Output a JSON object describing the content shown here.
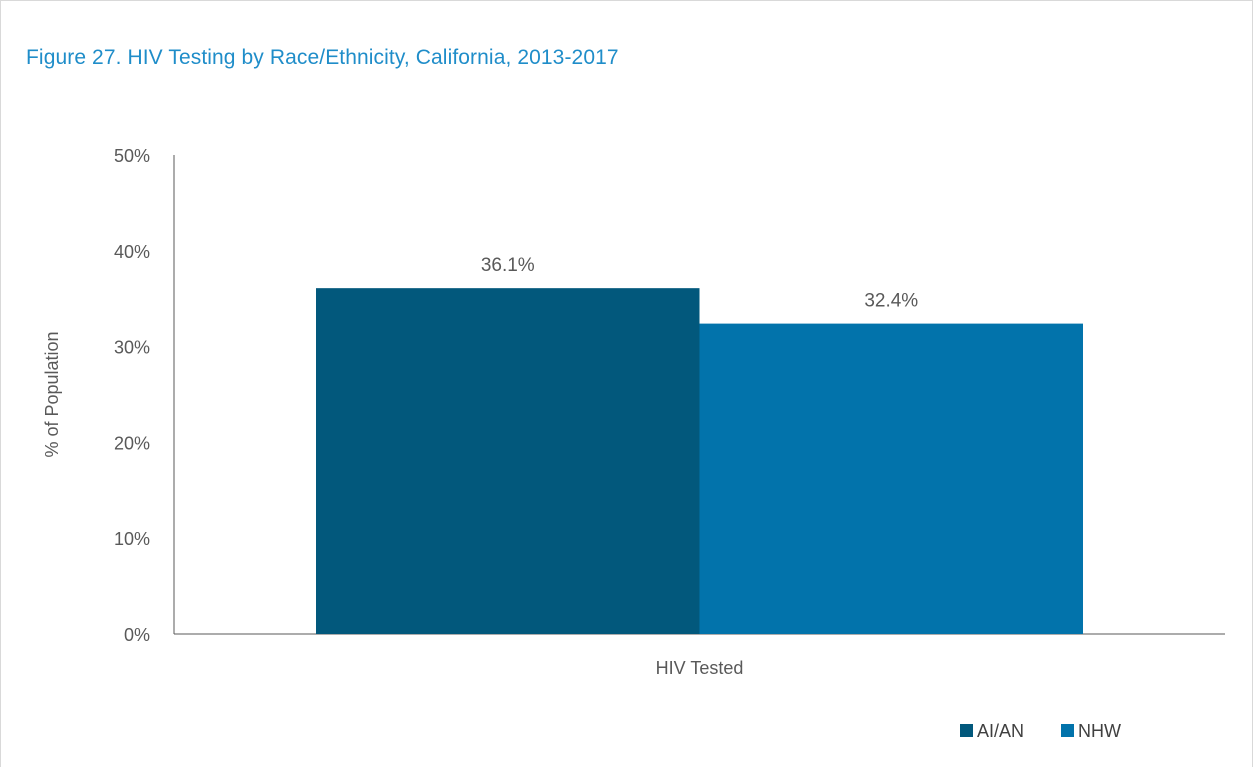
{
  "chart_data": {
    "type": "bar",
    "title": "Figure 27. HIV Testing by Race/Ethnicity, California, 2013-2017",
    "ylabel": "% of Population",
    "xlabel": "",
    "ylim": [
      0,
      50
    ],
    "yticks": [
      "0%",
      "10%",
      "20%",
      "30%",
      "40%",
      "50%"
    ],
    "categories": [
      "HIV Tested"
    ],
    "series": [
      {
        "name": "AI/AN",
        "values": [
          36.1
        ],
        "label": "36.1%",
        "color": "#02587c"
      },
      {
        "name": "NHW",
        "values": [
          32.4
        ],
        "label": "32.4%",
        "color": "#0273ab"
      }
    ],
    "legend_position": "bottom-right",
    "grid": false
  }
}
